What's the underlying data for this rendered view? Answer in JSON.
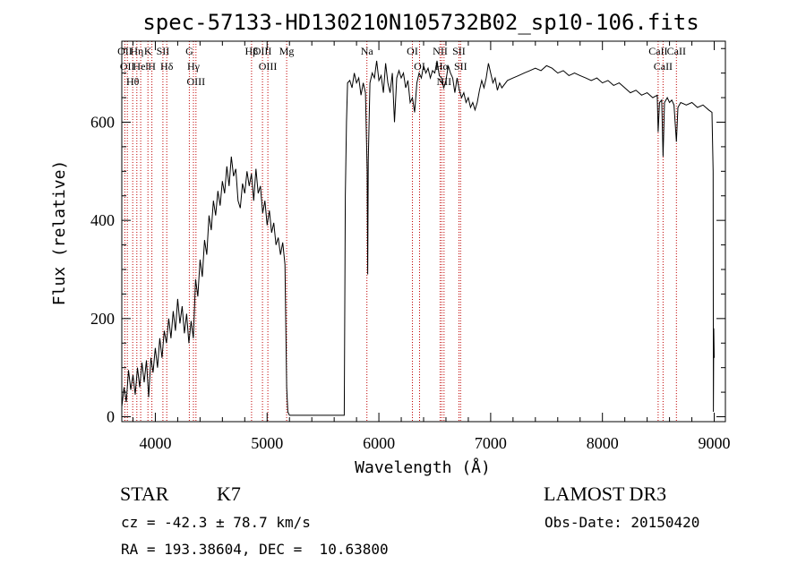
{
  "chart_data": {
    "type": "line",
    "title": "spec-57133-HD130210N105732B02_sp10-106.fits",
    "xlabel": "Wavelength (Å)",
    "ylabel": "Flux (relative)",
    "xlim": [
      3700,
      9100
    ],
    "ylim": [
      -10,
      765
    ],
    "x_ticks": [
      4000,
      5000,
      6000,
      7000,
      8000,
      9000
    ],
    "y_ticks": [
      0,
      200,
      400,
      600
    ],
    "grid": false,
    "series": [
      {
        "color": "#000000",
        "points": [
          [
            3700,
            20
          ],
          [
            3720,
            60
          ],
          [
            3740,
            30
          ],
          [
            3760,
            95
          ],
          [
            3780,
            55
          ],
          [
            3800,
            85
          ],
          [
            3820,
            45
          ],
          [
            3840,
            100
          ],
          [
            3860,
            60
          ],
          [
            3880,
            110
          ],
          [
            3900,
            70
          ],
          [
            3920,
            115
          ],
          [
            3940,
            40
          ],
          [
            3960,
            120
          ],
          [
            3980,
            90
          ],
          [
            4000,
            140
          ],
          [
            4020,
            100
          ],
          [
            4040,
            160
          ],
          [
            4060,
            120
          ],
          [
            4080,
            175
          ],
          [
            4100,
            150
          ],
          [
            4120,
            200
          ],
          [
            4140,
            160
          ],
          [
            4160,
            215
          ],
          [
            4180,
            175
          ],
          [
            4200,
            240
          ],
          [
            4220,
            190
          ],
          [
            4240,
            225
          ],
          [
            4260,
            170
          ],
          [
            4280,
            210
          ],
          [
            4300,
            150
          ],
          [
            4320,
            195
          ],
          [
            4340,
            160
          ],
          [
            4360,
            280
          ],
          [
            4380,
            245
          ],
          [
            4400,
            320
          ],
          [
            4420,
            285
          ],
          [
            4440,
            360
          ],
          [
            4460,
            330
          ],
          [
            4480,
            410
          ],
          [
            4500,
            380
          ],
          [
            4520,
            440
          ],
          [
            4540,
            410
          ],
          [
            4560,
            460
          ],
          [
            4580,
            430
          ],
          [
            4600,
            480
          ],
          [
            4620,
            455
          ],
          [
            4640,
            510
          ],
          [
            4660,
            470
          ],
          [
            4680,
            530
          ],
          [
            4700,
            490
          ],
          [
            4720,
            505
          ],
          [
            4740,
            440
          ],
          [
            4760,
            425
          ],
          [
            4780,
            475
          ],
          [
            4800,
            455
          ],
          [
            4820,
            500
          ],
          [
            4840,
            470
          ],
          [
            4860,
            495
          ],
          [
            4880,
            440
          ],
          [
            4900,
            505
          ],
          [
            4920,
            455
          ],
          [
            4940,
            470
          ],
          [
            4960,
            415
          ],
          [
            4980,
            440
          ],
          [
            5000,
            390
          ],
          [
            5020,
            420
          ],
          [
            5040,
            375
          ],
          [
            5060,
            395
          ],
          [
            5080,
            350
          ],
          [
            5100,
            365
          ],
          [
            5120,
            330
          ],
          [
            5140,
            355
          ],
          [
            5160,
            310
          ],
          [
            5175,
            60
          ],
          [
            5185,
            10
          ],
          [
            5200,
            3
          ],
          [
            5400,
            3
          ],
          [
            5600,
            3
          ],
          [
            5690,
            3
          ],
          [
            5700,
            450
          ],
          [
            5710,
            600
          ],
          [
            5720,
            680
          ],
          [
            5740,
            685
          ],
          [
            5760,
            670
          ],
          [
            5780,
            700
          ],
          [
            5800,
            680
          ],
          [
            5820,
            690
          ],
          [
            5840,
            655
          ],
          [
            5860,
            680
          ],
          [
            5880,
            660
          ],
          [
            5895,
            500
          ],
          [
            5900,
            290
          ],
          [
            5905,
            520
          ],
          [
            5920,
            680
          ],
          [
            5940,
            700
          ],
          [
            5960,
            690
          ],
          [
            5980,
            725
          ],
          [
            6000,
            685
          ],
          [
            6020,
            695
          ],
          [
            6040,
            660
          ],
          [
            6060,
            720
          ],
          [
            6080,
            680
          ],
          [
            6100,
            660
          ],
          [
            6120,
            700
          ],
          [
            6140,
            600
          ],
          [
            6160,
            690
          ],
          [
            6180,
            705
          ],
          [
            6200,
            690
          ],
          [
            6220,
            700
          ],
          [
            6240,
            670
          ],
          [
            6260,
            685
          ],
          [
            6280,
            640
          ],
          [
            6300,
            650
          ],
          [
            6320,
            620
          ],
          [
            6340,
            680
          ],
          [
            6360,
            700
          ],
          [
            6380,
            690
          ],
          [
            6400,
            715
          ],
          [
            6420,
            700
          ],
          [
            6440,
            710
          ],
          [
            6460,
            690
          ],
          [
            6480,
            705
          ],
          [
            6500,
            700
          ],
          [
            6520,
            725
          ],
          [
            6540,
            695
          ],
          [
            6560,
            690
          ],
          [
            6580,
            670
          ],
          [
            6600,
            685
          ],
          [
            6620,
            715
          ],
          [
            6640,
            700
          ],
          [
            6660,
            690
          ],
          [
            6680,
            660
          ],
          [
            6700,
            690
          ],
          [
            6720,
            665
          ],
          [
            6740,
            650
          ],
          [
            6760,
            660
          ],
          [
            6780,
            640
          ],
          [
            6800,
            650
          ],
          [
            6820,
            630
          ],
          [
            6840,
            640
          ],
          [
            6860,
            625
          ],
          [
            6880,
            640
          ],
          [
            6900,
            665
          ],
          [
            6920,
            685
          ],
          [
            6940,
            670
          ],
          [
            6960,
            690
          ],
          [
            6980,
            720
          ],
          [
            7000,
            700
          ],
          [
            7020,
            680
          ],
          [
            7040,
            690
          ],
          [
            7060,
            665
          ],
          [
            7080,
            680
          ],
          [
            7100,
            670
          ],
          [
            7150,
            685
          ],
          [
            7200,
            690
          ],
          [
            7250,
            695
          ],
          [
            7300,
            700
          ],
          [
            7350,
            705
          ],
          [
            7400,
            710
          ],
          [
            7450,
            705
          ],
          [
            7500,
            715
          ],
          [
            7550,
            710
          ],
          [
            7600,
            700
          ],
          [
            7650,
            705
          ],
          [
            7700,
            695
          ],
          [
            7750,
            700
          ],
          [
            7800,
            695
          ],
          [
            7850,
            690
          ],
          [
            7900,
            685
          ],
          [
            7950,
            690
          ],
          [
            8000,
            680
          ],
          [
            8050,
            685
          ],
          [
            8100,
            675
          ],
          [
            8150,
            680
          ],
          [
            8200,
            670
          ],
          [
            8250,
            660
          ],
          [
            8300,
            665
          ],
          [
            8350,
            655
          ],
          [
            8400,
            660
          ],
          [
            8450,
            650
          ],
          [
            8490,
            655
          ],
          [
            8498,
            580
          ],
          [
            8510,
            640
          ],
          [
            8530,
            645
          ],
          [
            8542,
            530
          ],
          [
            8555,
            640
          ],
          [
            8580,
            650
          ],
          [
            8600,
            640
          ],
          [
            8620,
            645
          ],
          [
            8640,
            635
          ],
          [
            8662,
            560
          ],
          [
            8675,
            630
          ],
          [
            8700,
            640
          ],
          [
            8750,
            635
          ],
          [
            8800,
            640
          ],
          [
            8850,
            630
          ],
          [
            8900,
            635
          ],
          [
            8950,
            625
          ],
          [
            8980,
            620
          ],
          [
            8990,
            500
          ],
          [
            8993,
            10
          ],
          [
            8996,
            180
          ],
          [
            9000,
            120
          ]
        ]
      }
    ],
    "line_markers": [
      {
        "wavelength": 3727,
        "label": "OII"
      },
      {
        "wavelength": 3750,
        "label": "OII"
      },
      {
        "wavelength": 3798,
        "label": "Hθ"
      },
      {
        "wavelength": 3835,
        "label": "Hη"
      },
      {
        "wavelength": 3869,
        "label": "Hel"
      },
      {
        "wavelength": 3934,
        "label": "K"
      },
      {
        "wavelength": 3969,
        "label": "H"
      },
      {
        "wavelength": 4068,
        "label": "SII"
      },
      {
        "wavelength": 4102,
        "label": "Hδ"
      },
      {
        "wavelength": 4304,
        "label": "G"
      },
      {
        "wavelength": 4341,
        "label": "Hγ"
      },
      {
        "wavelength": 4363,
        "label": "OIII"
      },
      {
        "wavelength": 4861,
        "label": "Hβ"
      },
      {
        "wavelength": 4959,
        "label": "OIII"
      },
      {
        "wavelength": 5007,
        "label": "OIII"
      },
      {
        "wavelength": 5175,
        "label": "Mg"
      },
      {
        "wavelength": 5893,
        "label": "Na"
      },
      {
        "wavelength": 6300,
        "label": "OI"
      },
      {
        "wavelength": 6364,
        "label": "OI"
      },
      {
        "wavelength": 6548,
        "label": "NII"
      },
      {
        "wavelength": 6563,
        "label": "Hα"
      },
      {
        "wavelength": 6583,
        "label": "NII"
      },
      {
        "wavelength": 6716,
        "label": "SII"
      },
      {
        "wavelength": 6731,
        "label": "SII"
      },
      {
        "wavelength": 8498,
        "label": "CaII"
      },
      {
        "wavelength": 8542,
        "label": "CaII"
      },
      {
        "wavelength": 8662,
        "label": "CaII"
      }
    ],
    "line_marker_color": "#c00000"
  },
  "info": {
    "object_class": "STAR",
    "subclass": "K7",
    "survey": "LAMOST DR3",
    "redshift_text": "cz = -42.3 ± 78.7 km/s",
    "obs_date_text": "Obs-Date: 20150420",
    "coords_text": "RA = 193.38604, DEC =  10.63800"
  }
}
